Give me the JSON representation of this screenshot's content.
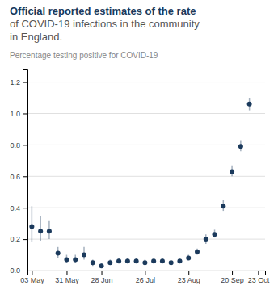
{
  "chart_data": {
    "type": "scatter",
    "title": "Official reported estimates of the rate\nof COVID-19 infections in the community\nin England.",
    "ylabel": "Percentage testing positive for COVID-19",
    "color": "#1b3a5c",
    "x": [
      0,
      1,
      2,
      3,
      4,
      5,
      6,
      7,
      8,
      9,
      10,
      11,
      12,
      13,
      14,
      15,
      16,
      17,
      18,
      19,
      20,
      21,
      22,
      23,
      24,
      25
    ],
    "values": [
      0.28,
      0.25,
      0.25,
      0.11,
      0.07,
      0.07,
      0.1,
      0.05,
      0.03,
      0.05,
      0.06,
      0.06,
      0.06,
      0.05,
      0.06,
      0.06,
      0.05,
      0.06,
      0.08,
      0.12,
      0.2,
      0.23,
      0.41,
      0.63,
      0.79,
      1.06
    ],
    "yerr_lo": [
      0.1,
      0.06,
      0.05,
      0.03,
      0.02,
      0.02,
      0.03,
      0.02,
      0.01,
      0.01,
      0.01,
      0.01,
      0.01,
      0.01,
      0.01,
      0.01,
      0.01,
      0.01,
      0.01,
      0.02,
      0.03,
      0.02,
      0.03,
      0.03,
      0.03,
      0.04
    ],
    "yerr_hi": [
      0.13,
      0.1,
      0.07,
      0.04,
      0.03,
      0.03,
      0.05,
      0.02,
      0.02,
      0.02,
      0.02,
      0.02,
      0.02,
      0.02,
      0.01,
      0.02,
      0.01,
      0.01,
      0.02,
      0.02,
      0.03,
      0.03,
      0.04,
      0.04,
      0.04,
      0.04
    ],
    "xlim": [
      -0.5,
      26.8
    ],
    "xticks": [
      {
        "value": 0,
        "label": "03 May"
      },
      {
        "value": 4,
        "label": "31 May"
      },
      {
        "value": 8,
        "label": "28 Jun"
      },
      {
        "value": 13,
        "label": "26 Jul"
      },
      {
        "value": 18,
        "label": "23 Aug"
      },
      {
        "value": 23,
        "label": "20 Sep"
      },
      {
        "value": 26,
        "label": "23 Oct"
      }
    ],
    "ylim": [
      0.0,
      1.28
    ],
    "yticks": [
      {
        "value": 0.0,
        "label": "0.0"
      },
      0.2,
      0.4,
      0.6,
      0.8,
      {
        "value": 1.0,
        "label": "1.0"
      },
      1.2
    ],
    "grid": "y"
  }
}
